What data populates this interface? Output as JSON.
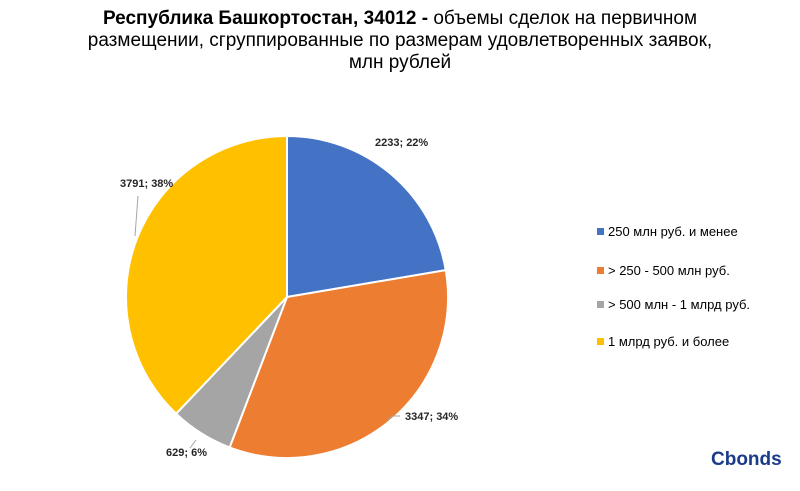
{
  "title": {
    "bold_part": "Республика Башкортостан, 34012 -",
    "line1_rest": " объемы сделок на первичном",
    "line2": "размещении, сгруппированные по размерам удовлетворенных заявок,",
    "line3": "млн рублей"
  },
  "chart_data": {
    "type": "pie",
    "title": "Республика Башкортостан, 34012 - объемы сделок на первичном размещении, сгруппированные по размерам удовлетворенных заявок, млн рублей",
    "legend_position": "right",
    "slices": [
      {
        "label": "250 млн руб. и менее",
        "value": 2233,
        "percent": 22,
        "data_label": "2233; 22%",
        "color": "#4472c4"
      },
      {
        "label": "> 250 - 500 млн руб.",
        "value": 3347,
        "percent": 34,
        "data_label": "3347; 34%",
        "color": "#ed7d31"
      },
      {
        "label": "> 500 млн - 1 млрд руб.",
        "value": 629,
        "percent": 6,
        "data_label": "629; 6%",
        "color": "#a5a5a5"
      },
      {
        "label": "1 млрд руб. и более",
        "value": 3791,
        "percent": 38,
        "data_label": "3791; 38%",
        "color": "#ffc000"
      }
    ]
  },
  "logo": {
    "text": "Cbonds"
  }
}
